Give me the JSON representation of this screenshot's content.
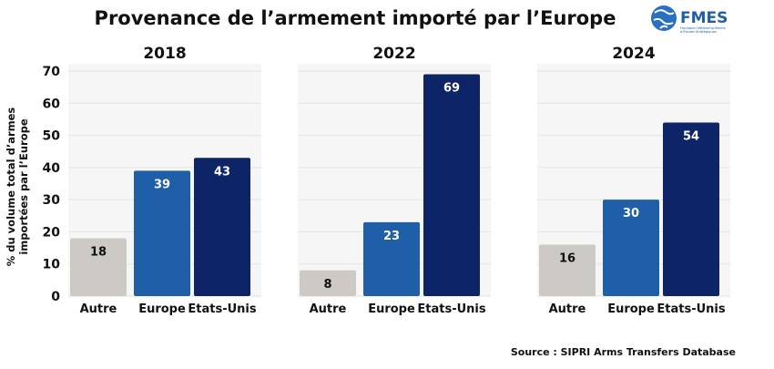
{
  "title": "Provenance de l’armement importé par l’Europe",
  "logo": {
    "name": "FMES",
    "subtitle_lines": [
      "Fondation Méditerranéenne",
      "d’Études Stratégiques"
    ]
  },
  "source": "Source : SIPRI Arms Transfers Database",
  "chart_data": {
    "type": "bar",
    "ylabel_lines": [
      "% du volume total d’armes",
      "importées par l’Europe"
    ],
    "ylim": [
      0,
      70
    ],
    "yticks": [
      0,
      10,
      20,
      30,
      40,
      50,
      60,
      70
    ],
    "grid": true,
    "categories": [
      "Autre",
      "Europe",
      "Etats-Unis"
    ],
    "colors": {
      "Autre": "#cdc9c4",
      "Europe": "#1f5fa8",
      "Etats-Unis": "#0d2466",
      "label_dark": "#111111",
      "label_light": "#ffffff",
      "grid": "#e3e3e3",
      "panel_bg": "#f6f6f6"
    },
    "panels": [
      {
        "year": "2018",
        "values": [
          18,
          39,
          43
        ]
      },
      {
        "year": "2022",
        "values": [
          8,
          23,
          69
        ]
      },
      {
        "year": "2024",
        "values": [
          16,
          30,
          54
        ]
      }
    ]
  }
}
